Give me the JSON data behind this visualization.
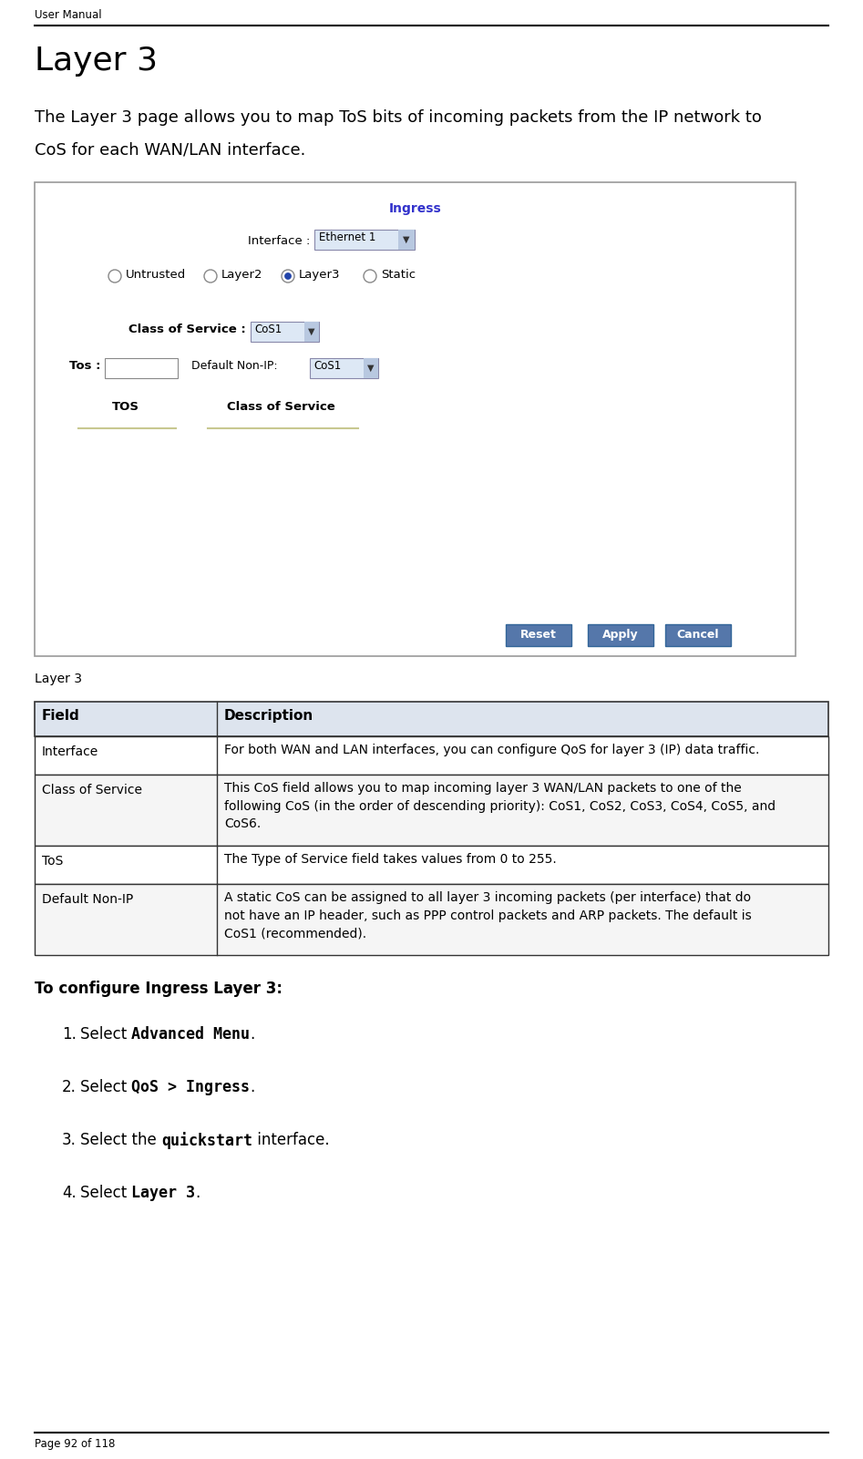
{
  "bg_color": "#ffffff",
  "header_text": "User Manual",
  "footer_text": "Page 92 of 118",
  "title": "Layer 3",
  "intro_line1": "The Layer 3 page allows you to map ToS bits of incoming packets from the IP network to",
  "intro_line2": "CoS for each WAN/LAN interface.",
  "ingress_title": "Ingress",
  "ingress_title_color": "#3333cc",
  "screenshot_label": "Layer 3",
  "table_headers": [
    "Field",
    "Description"
  ],
  "table_rows": [
    [
      "Interface",
      "For both WAN and LAN interfaces, you can configure QoS for layer 3 (IP) data traffic."
    ],
    [
      "Class of Service",
      "This CoS field allows you to map incoming layer 3 WAN/LAN packets to one of the\nfollowing CoS (in the order of descending priority): CoS1, CoS2, CoS3, CoS4, CoS5, and\nCoS6."
    ],
    [
      "ToS",
      "The Type of Service field takes values from 0 to 255."
    ],
    [
      "Default Non-IP",
      "A static CoS can be assigned to all layer 3 incoming packets (per interface) that do\nnot have an IP header, such as PPP control packets and ARP packets. The default is\nCoS1 (recommended)."
    ]
  ],
  "configure_title": "To configure Ingress Layer 3:",
  "step_normal": [
    "Select ",
    "Select ",
    "Select the ",
    "Select "
  ],
  "step_bold": [
    "Advanced Menu",
    "QoS > Ingress",
    "quickstart",
    "Layer 3"
  ],
  "step_after": [
    ".",
    ".",
    " interface.",
    "."
  ]
}
